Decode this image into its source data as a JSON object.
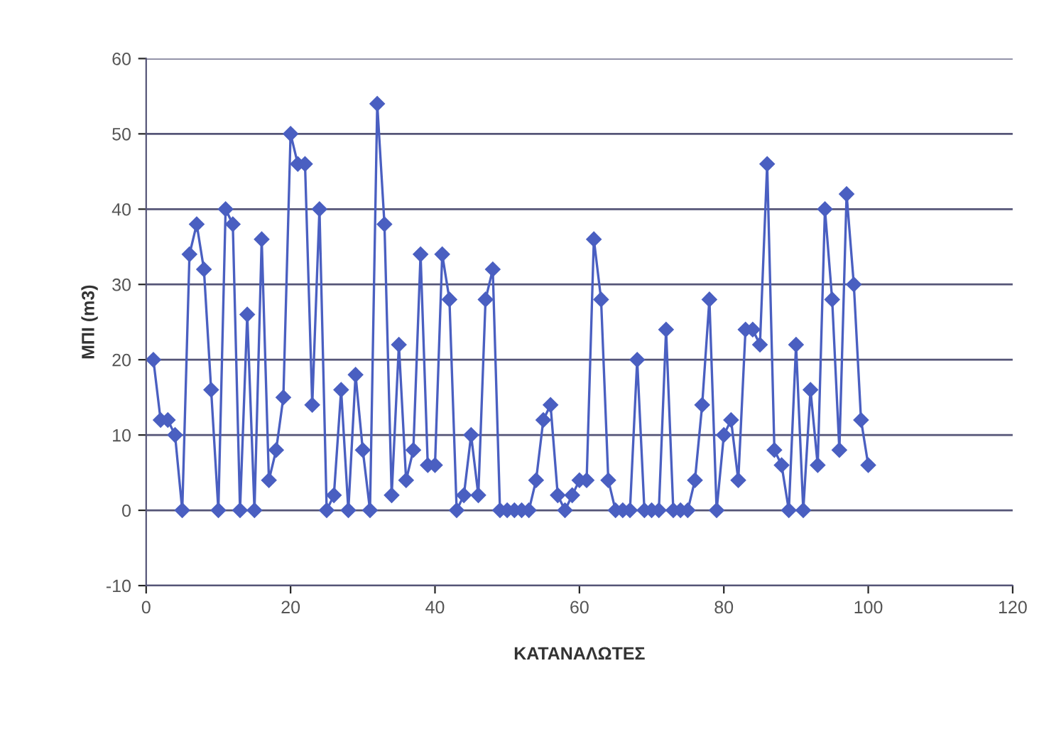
{
  "chart_data": {
    "type": "line",
    "xlabel": "ΚΑΤΑΝΑΛΩΤΕΣ",
    "ylabel": "ΜΠΙ (m3)",
    "x": [
      1,
      2,
      3,
      4,
      5,
      6,
      7,
      8,
      9,
      10,
      11,
      12,
      13,
      14,
      15,
      16,
      17,
      18,
      19,
      20,
      21,
      22,
      23,
      24,
      25,
      26,
      27,
      28,
      29,
      30,
      31,
      32,
      33,
      34,
      35,
      36,
      37,
      38,
      39,
      40,
      41,
      42,
      43,
      44,
      45,
      46,
      47,
      48,
      49,
      50,
      51,
      52,
      53,
      54,
      55,
      56,
      57,
      58,
      59,
      60,
      61,
      62,
      63,
      64,
      65,
      66,
      67,
      68,
      69,
      70,
      71,
      72,
      73,
      74,
      75,
      76,
      77,
      78,
      79,
      80,
      81,
      82,
      83,
      84,
      85,
      86,
      87,
      88,
      89,
      90,
      91,
      92,
      93,
      94,
      95,
      96,
      97,
      98,
      99,
      100
    ],
    "series": [
      {
        "color": "#4a5fc1",
        "values": [
          20,
          12,
          12,
          10,
          0,
          34,
          38,
          32,
          16,
          0,
          40,
          38,
          0,
          26,
          0,
          36,
          4,
          8,
          15,
          50,
          46,
          46,
          14,
          40,
          0,
          2,
          16,
          0,
          18,
          8,
          0,
          54,
          38,
          2,
          22,
          4,
          8,
          34,
          6,
          6,
          34,
          28,
          0,
          2,
          10,
          2,
          28,
          32,
          0,
          0,
          0,
          0,
          0,
          4,
          12,
          14,
          2,
          0,
          2,
          4,
          4,
          36,
          28,
          4,
          0,
          0,
          0,
          20,
          0,
          0,
          0,
          24,
          0,
          0,
          0,
          4,
          14,
          28,
          0,
          10,
          12,
          4,
          24,
          24,
          22,
          46,
          8,
          6,
          0,
          22,
          0,
          16,
          6,
          40,
          28,
          8,
          42,
          30,
          12,
          6
        ]
      }
    ],
    "xlim": [
      0,
      120
    ],
    "xticks": [
      0,
      20,
      40,
      60,
      80,
      100,
      120
    ],
    "ylim": [
      -10,
      60
    ],
    "yticks": [
      -10,
      0,
      10,
      20,
      30,
      40,
      50,
      60
    ],
    "grid": "y",
    "marker": "diamond",
    "line_style": "solid"
  }
}
